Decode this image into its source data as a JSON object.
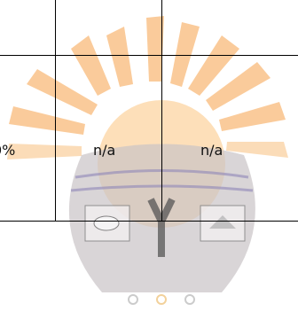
{
  "table": {
    "rows": [
      [
        "0%",
        "n/a",
        "n/a"
      ]
    ]
  }
}
